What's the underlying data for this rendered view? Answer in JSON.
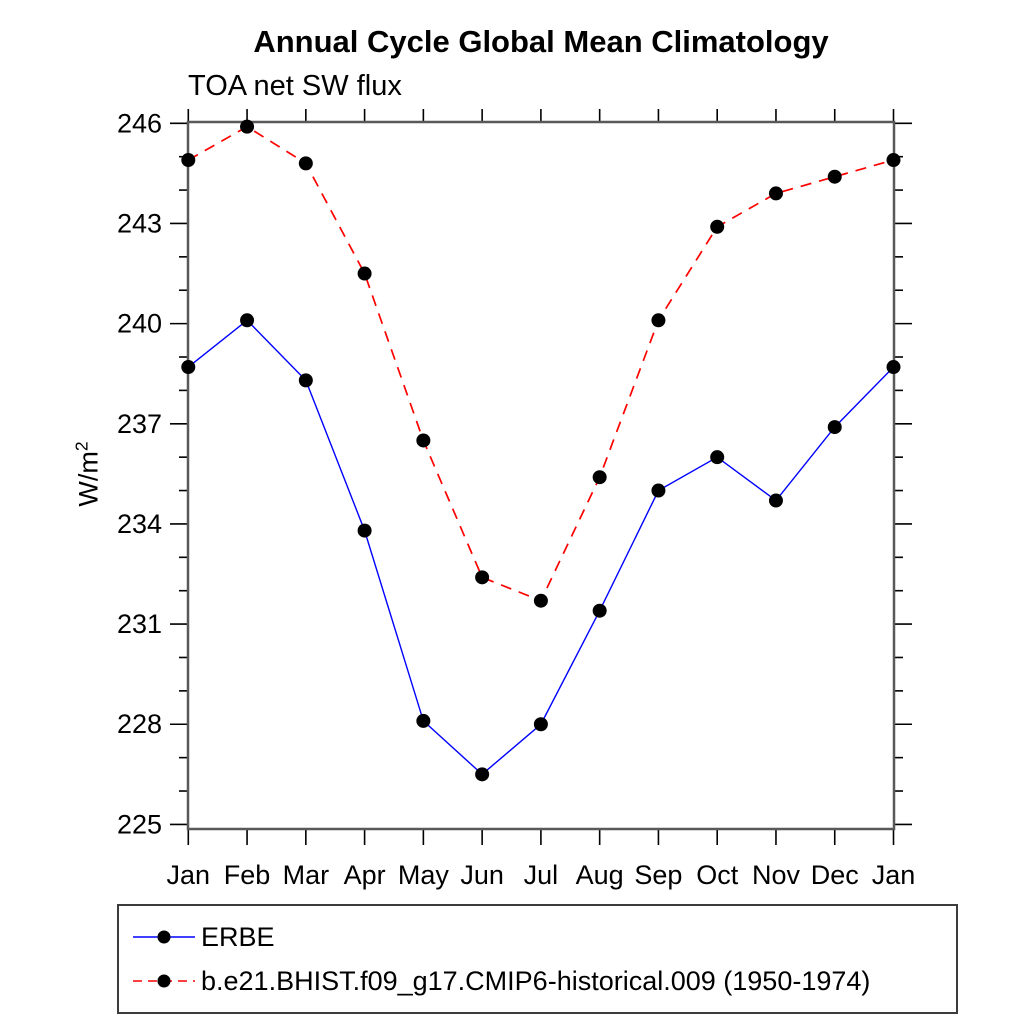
{
  "title": "Annual Cycle Global Mean Climatology",
  "subtitle": "TOA net SW flux",
  "y_axis": {
    "label": "W/m2",
    "label_base": "W/m",
    "label_exponent": "2",
    "tick_labels": [
      "246",
      "243",
      "240",
      "237",
      "234",
      "231",
      "228",
      "225"
    ]
  },
  "x_axis": {
    "tick_labels": [
      "Jan",
      "Feb",
      "Mar",
      "Apr",
      "May",
      "Jun",
      "Jul",
      "Aug",
      "Sep",
      "Oct",
      "Nov",
      "Dec",
      "Jan"
    ]
  },
  "legend": {
    "entries": [
      "ERBE",
      "b.e21.BHIST.f09_g17.CMIP6-historical.009 (1950-1974)"
    ]
  },
  "colors": {
    "erbe_line": "#0000ff",
    "model_line": "#ff0000",
    "marker": "#000000",
    "frame": "#595959",
    "tick": "#000000"
  },
  "chart_data": {
    "type": "line",
    "title": "Annual Cycle Global Mean Climatology",
    "subtitle": "TOA net SW flux",
    "ylabel": "W/m2",
    "xlabel": "",
    "categories": [
      "Jan",
      "Feb",
      "Mar",
      "Apr",
      "May",
      "Jun",
      "Jul",
      "Aug",
      "Sep",
      "Oct",
      "Nov",
      "Dec",
      "Jan"
    ],
    "series": [
      {
        "name": "ERBE",
        "color": "#0000ff",
        "line_style": "solid",
        "marker": "circle",
        "values": [
          238.7,
          240.1,
          238.3,
          233.8,
          228.1,
          226.5,
          228.0,
          231.4,
          235.0,
          236.0,
          234.7,
          236.9,
          238.7
        ]
      },
      {
        "name": "b.e21.BHIST.f09_g17.CMIP6-historical.009 (1950-1974)",
        "color": "#ff0000",
        "line_style": "dashed",
        "marker": "circle",
        "values": [
          244.9,
          245.9,
          244.8,
          241.5,
          236.5,
          232.4,
          231.7,
          235.4,
          240.1,
          242.9,
          243.9,
          244.4,
          244.9
        ]
      }
    ],
    "marker_color": "#000000",
    "ylim": [
      225,
      246
    ],
    "ytick_major_step": 3,
    "ytick_minor_step": 1,
    "grid": false,
    "legend_position": "bottom-left"
  }
}
